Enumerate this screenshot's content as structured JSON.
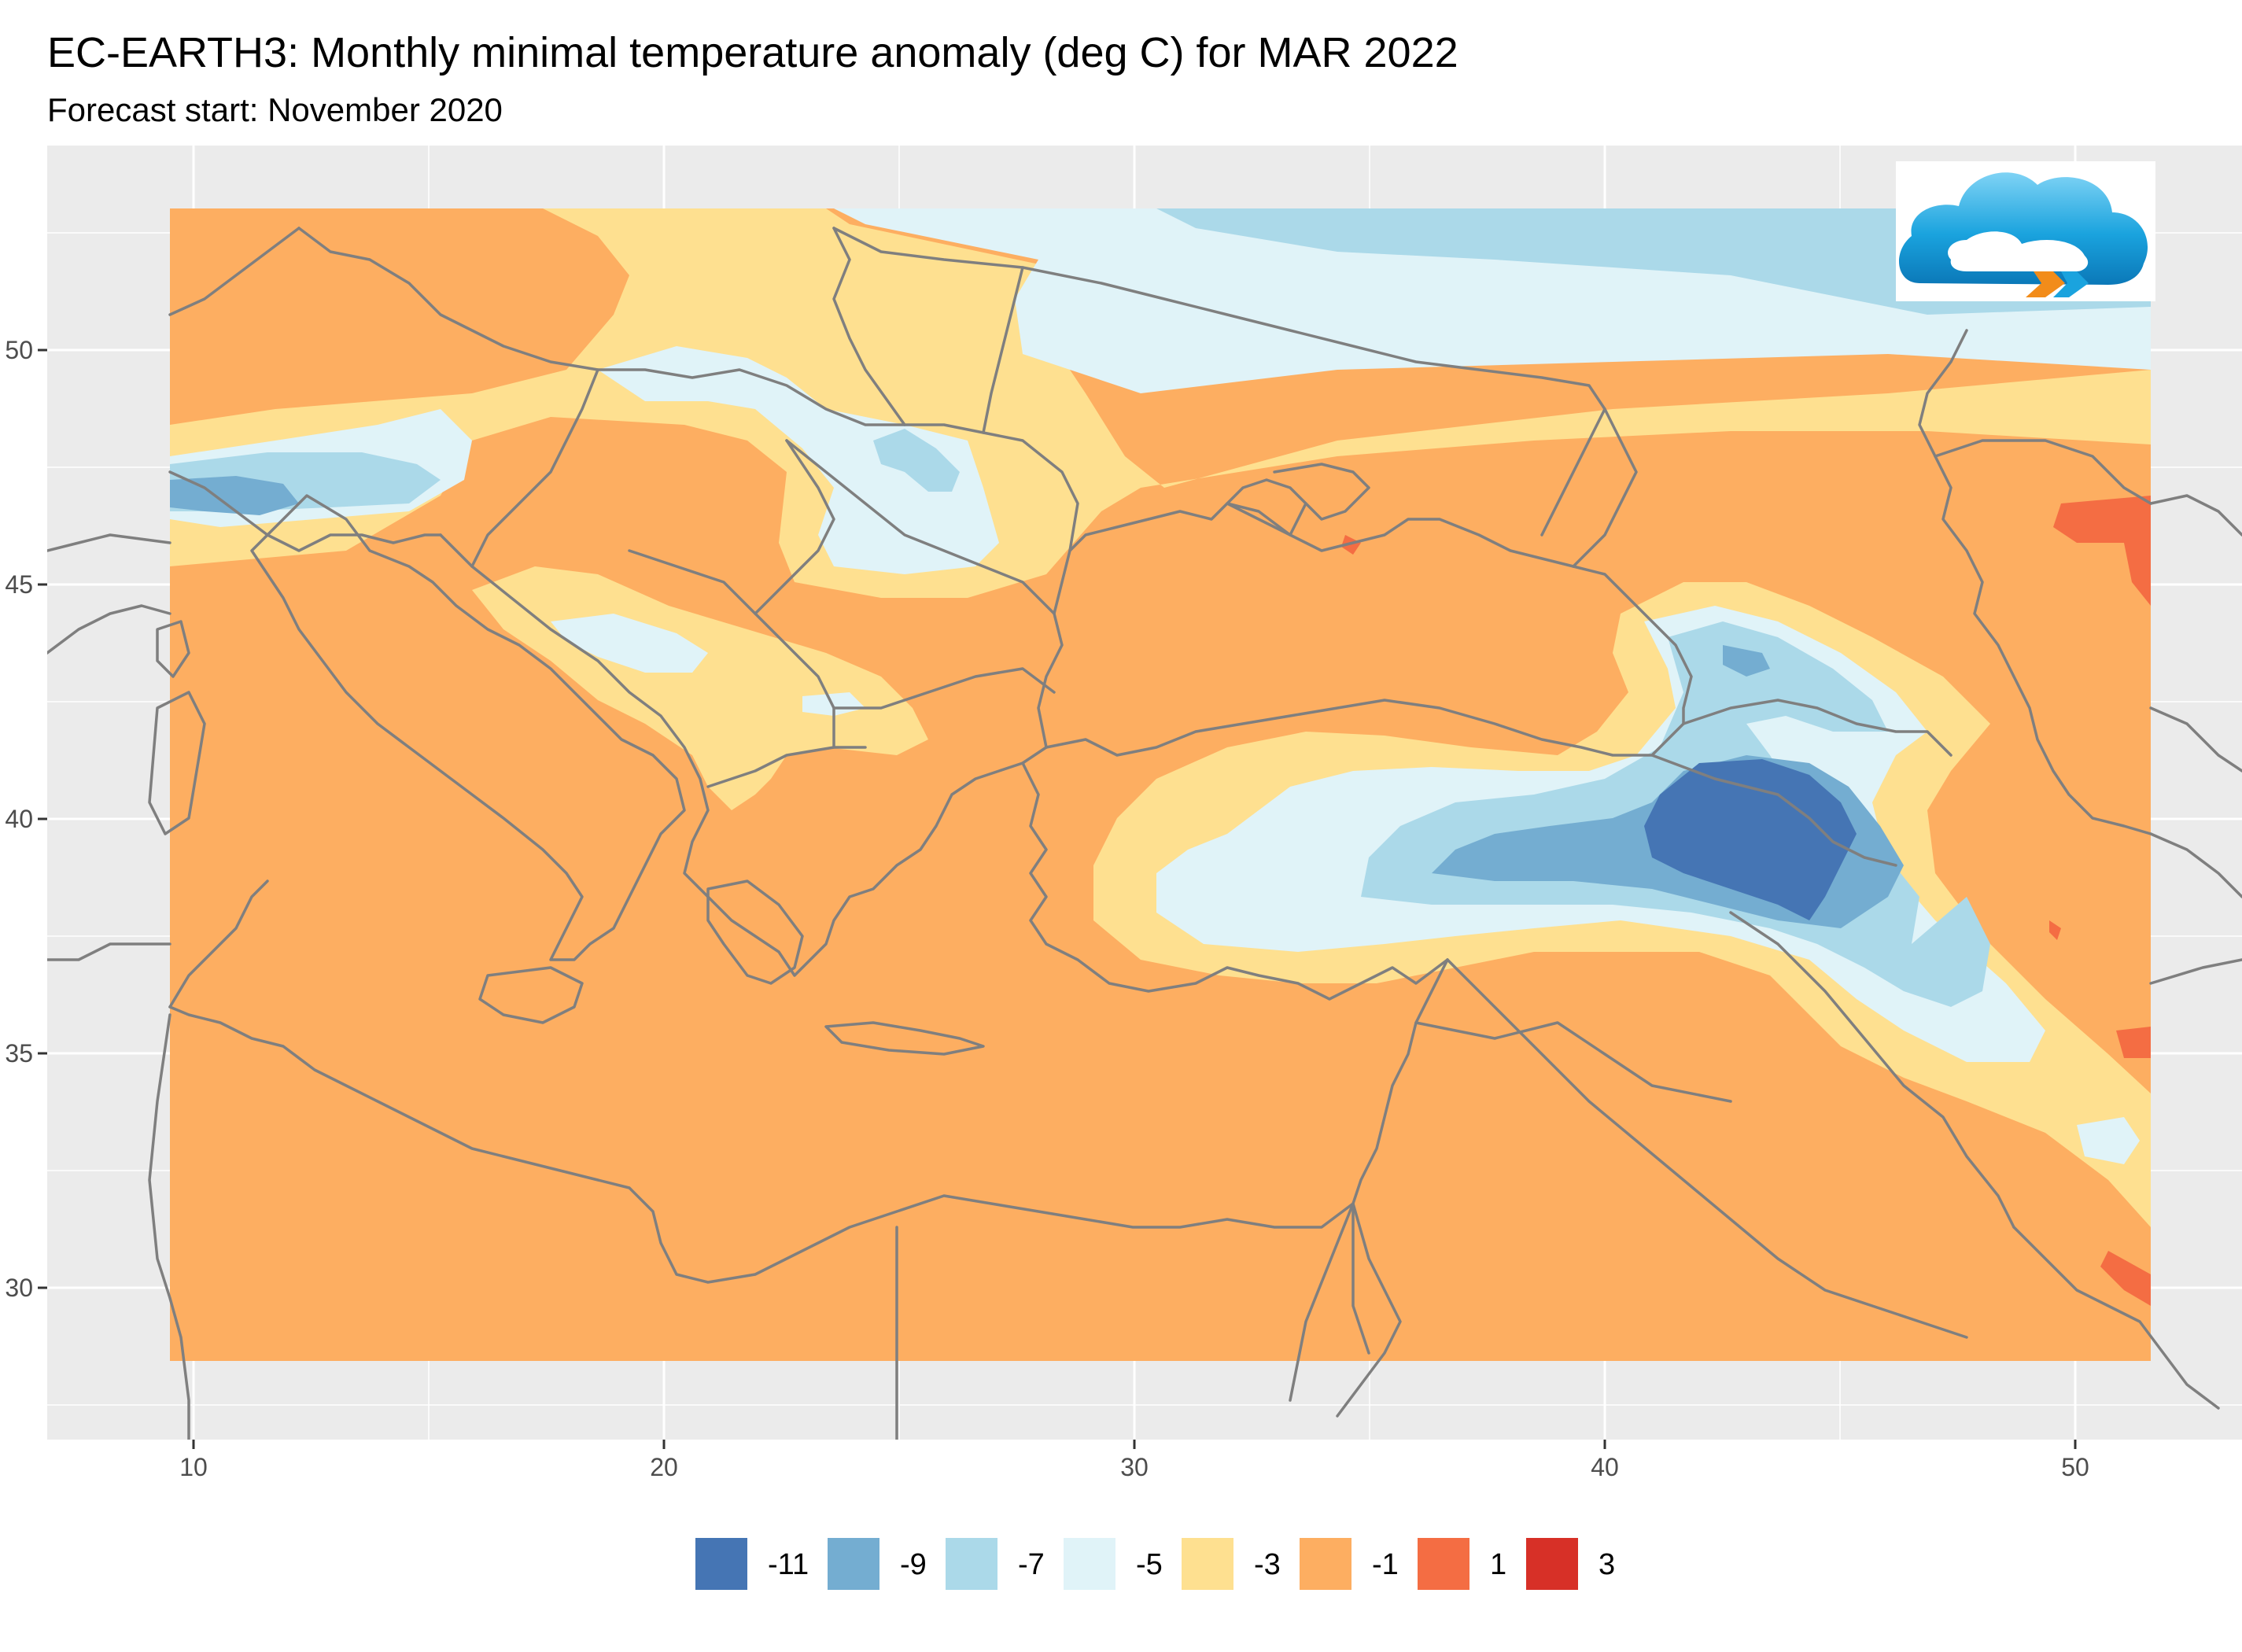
{
  "title": "EC-EARTH3: Monthly minimal temperature anomaly (deg C) for MAR 2022",
  "subtitle": "Forecast start: November 2020",
  "colors": {
    "panel_bg": "#ebebeb",
    "grid": "#ffffff",
    "coast": "#7f7f7f"
  },
  "x_axis": {
    "ticks": [
      10,
      20,
      30,
      40,
      50
    ],
    "labels": [
      "10",
      "20",
      "30",
      "40",
      "50"
    ]
  },
  "y_axis": {
    "ticks": [
      30,
      35,
      40,
      45,
      50
    ],
    "labels": [
      "30",
      "35",
      "40",
      "45",
      "50"
    ]
  },
  "legend": {
    "items": [
      {
        "label": "-11",
        "color": "#4575b4"
      },
      {
        "label": "-9",
        "color": "#74add1"
      },
      {
        "label": "-7",
        "color": "#abd9e9"
      },
      {
        "label": "-5",
        "color": "#e0f3f8"
      },
      {
        "label": "-3",
        "color": "#fee090"
      },
      {
        "label": "-1",
        "color": "#fdae61"
      },
      {
        "label": "1",
        "color": "#f46d43"
      },
      {
        "label": "3",
        "color": "#d73027"
      }
    ]
  },
  "logo_icon": "cloud-logo-icon"
}
